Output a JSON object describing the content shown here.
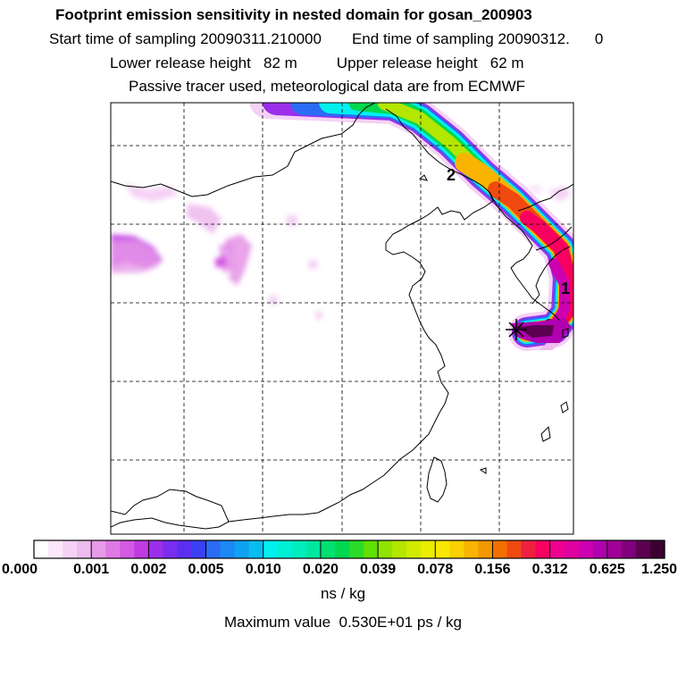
{
  "header": {
    "title": "Footprint emission sensitivity in nested domain for gosan_200903",
    "start_label": "Start time of sampling",
    "start_value": "20090311.210000",
    "end_label": "End time of sampling",
    "end_value": "20090312.",
    "end_suffix": "0",
    "lower_label": "Lower release height",
    "lower_value": "82 m",
    "upper_label": "Upper release height",
    "upper_value": "62 m",
    "note": "Passive tracer used, meteorological data are from ECMWF"
  },
  "map": {
    "markers": [
      {
        "label": "1"
      },
      {
        "label": "2"
      }
    ],
    "receptor": "star"
  },
  "colorbar": {
    "tick_labels": [
      "0.000",
      "0.001",
      "0.002",
      "0.005",
      "0.010",
      "0.020",
      "0.039",
      "0.078",
      "0.156",
      "0.312",
      "0.625",
      "1.250"
    ],
    "colors": [
      "#ffffff",
      "#fbe8fb",
      "#f5d2f5",
      "#eebcee",
      "#e79ae8",
      "#df7ae4",
      "#d35ae4",
      "#c23ae4",
      "#9b2fea",
      "#7a2df0",
      "#5a2ff2",
      "#3b3ff4",
      "#2a6cf4",
      "#1b88f4",
      "#0fa2f2",
      "#08bcf0",
      "#00f0f0",
      "#00f0d6",
      "#00eebd",
      "#00e8a0",
      "#00e070",
      "#00d850",
      "#2adc28",
      "#60e000",
      "#90e400",
      "#b4e600",
      "#d2ea00",
      "#eaee00",
      "#f8e800",
      "#fad000",
      "#f8b400",
      "#f49800",
      "#f27000",
      "#f04a10",
      "#f02040",
      "#f80060",
      "#f00090",
      "#e000a0",
      "#cc00b0",
      "#b000b0",
      "#a00098",
      "#80007c",
      "#5c0050",
      "#3a0030"
    ],
    "units": "ns / kg",
    "max_label": "Maximum value",
    "max_value": "0.530E+01 ps / kg"
  }
}
